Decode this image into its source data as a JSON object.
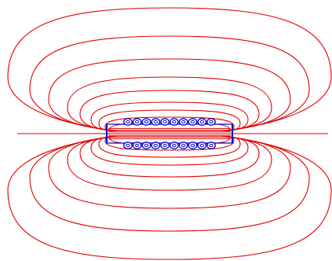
{
  "figure": {
    "subject": "solenoid-magnetic-field-lines",
    "colors": {
      "background": "#ffffff",
      "field_line": "#e00000",
      "coil_wire": "#0000cc",
      "solenoid_outline": "#0000cc"
    }
  },
  "solenoid": {
    "turns_per_row": 10,
    "rows": 2,
    "turn_marker": "circle-with-dot"
  },
  "field": {
    "loop_count": 9,
    "axis_line": true
  }
}
